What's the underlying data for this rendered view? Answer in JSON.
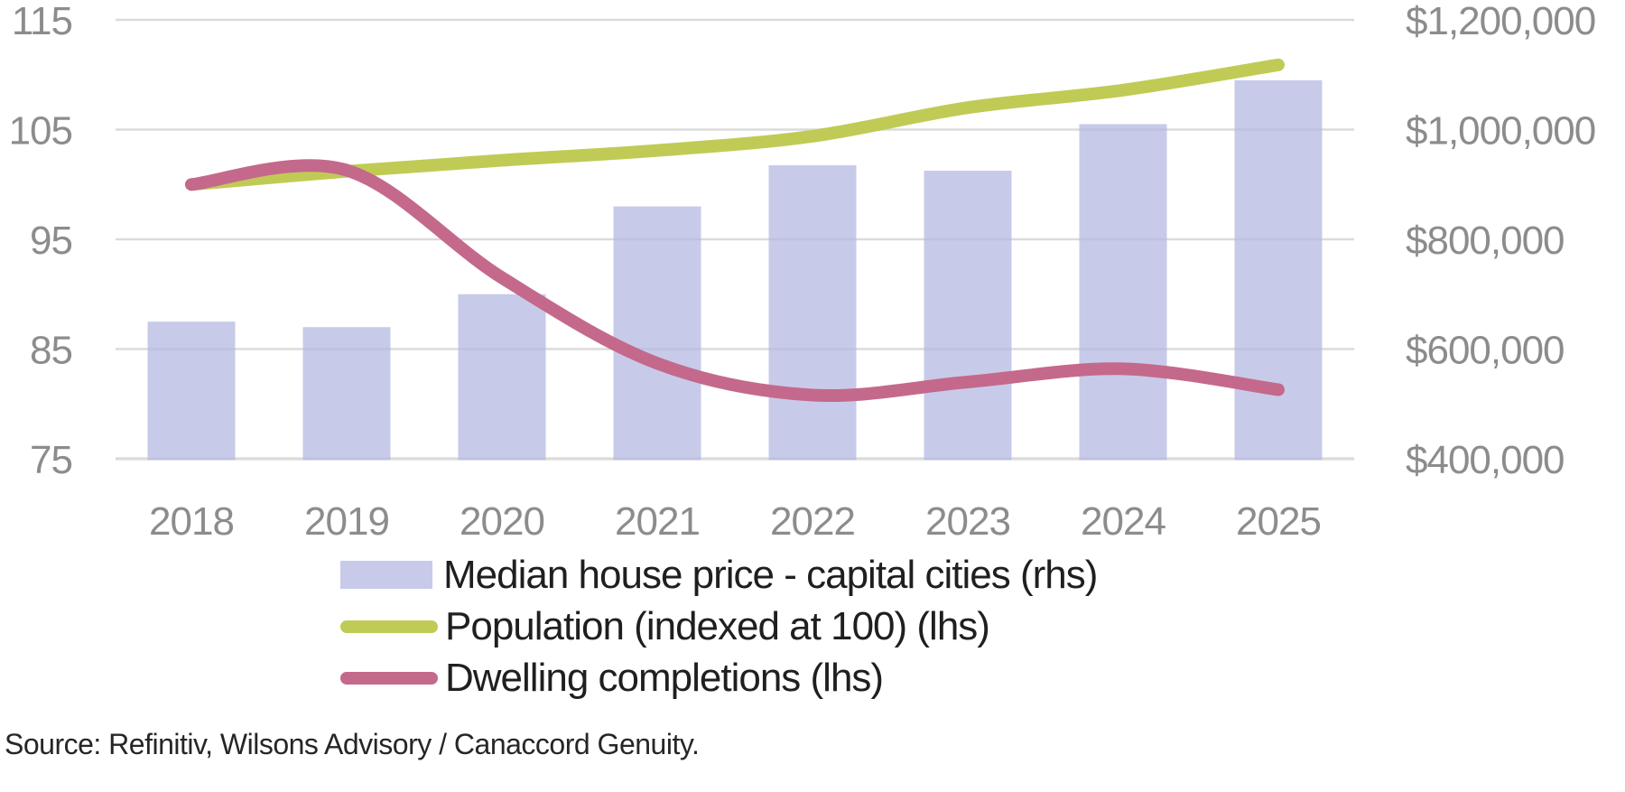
{
  "chart_data": {
    "type": "combo",
    "title": "",
    "categories": [
      "2018",
      "2019",
      "2020",
      "2021",
      "2022",
      "2023",
      "2024",
      "2025"
    ],
    "series": [
      {
        "name": "Median house price - capital cities (rhs)",
        "type": "bar",
        "axis": "rhs",
        "color": "#C8CCE8",
        "values": [
          650000,
          640000,
          700000,
          860000,
          935000,
          925000,
          1010000,
          1090000
        ]
      },
      {
        "name": "Population (indexed at 100) (lhs)",
        "type": "line",
        "axis": "lhs",
        "color": "#C0CB55",
        "values": [
          100,
          101.2,
          102.2,
          103.1,
          104.4,
          107,
          108.6,
          110.9
        ]
      },
      {
        "name": "Dwelling completions (lhs)",
        "type": "line",
        "axis": "lhs",
        "color": "#C4698C",
        "values": [
          100,
          101.3,
          91.5,
          83.7,
          80.8,
          82,
          83.2,
          81.3
        ]
      }
    ],
    "lhs_axis": {
      "min": 75,
      "max": 115,
      "tick_values": [
        115,
        105,
        95,
        85,
        75
      ],
      "tick_labels": [
        "115",
        "105",
        "95",
        "85",
        "75"
      ]
    },
    "rhs_axis": {
      "min": 400000,
      "max": 1200000,
      "tick_labels": [
        "$1,200,000",
        "$1,000,000",
        "$800,000",
        "$600,000",
        "$400,000"
      ]
    },
    "grid": true,
    "legend_position": "bottom-left"
  },
  "legend": {
    "items": [
      {
        "label": "Median house price - capital cities (rhs)",
        "marker": "bar",
        "color": "#C8CCE8"
      },
      {
        "label": "Population (indexed at 100) (lhs)",
        "marker": "line",
        "color": "#C0CB55"
      },
      {
        "label": "Dwelling completions (lhs)",
        "marker": "line",
        "color": "#C4698C"
      }
    ]
  },
  "source": {
    "text": "Source: Refinitiv, Wilsons Advisory / Canaccord Genuity."
  },
  "colors": {
    "gridline": "#DBDBDB",
    "axis_labels": "#8C8C8C",
    "legend_text": "#1F1F1F",
    "background": "#FFFFFF"
  }
}
